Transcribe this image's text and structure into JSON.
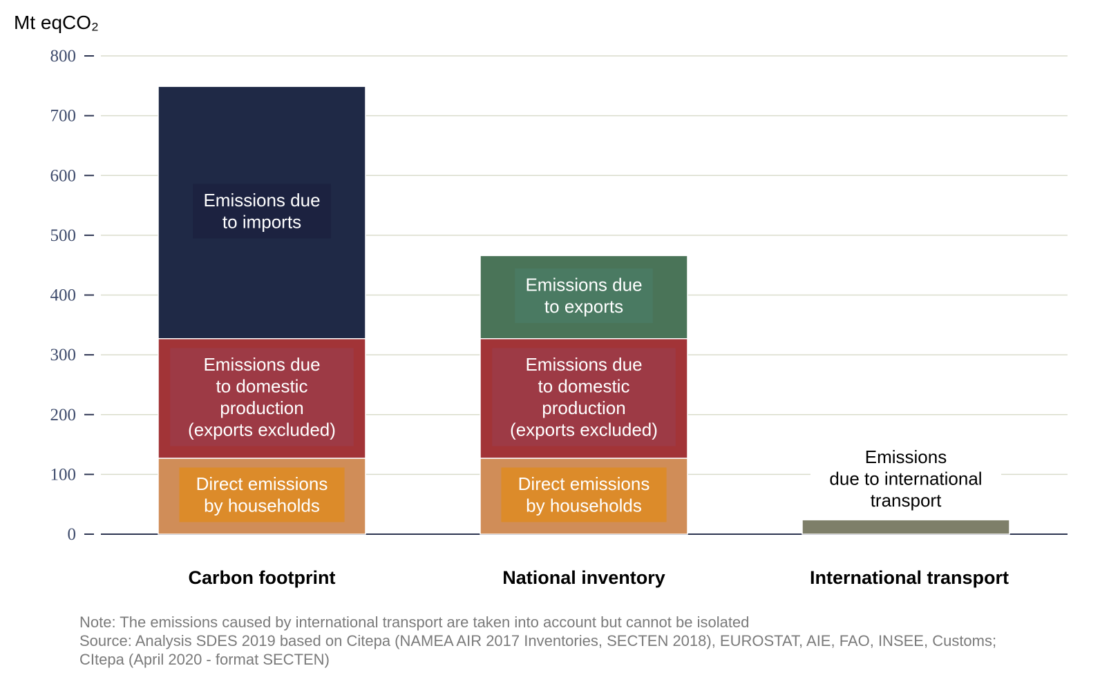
{
  "chart_data": {
    "type": "bar",
    "stacked": true,
    "ylabel": "Mt eqCO₂",
    "ylim": [
      0,
      800
    ],
    "yticks": [
      0,
      100,
      200,
      300,
      400,
      500,
      600,
      700,
      800
    ],
    "grid": true,
    "categories": [
      "Carbon footprint",
      "National inventory",
      "International transport"
    ],
    "series": [
      {
        "name": "Direct emissions by households",
        "color": "#d08d58",
        "label_box_color": "#dc8b2a",
        "values": [
          127,
          127,
          0
        ]
      },
      {
        "name": "Emissions due to domestic production (exports excluded)",
        "color": "#a23437",
        "label_box_color": "#9d3a45",
        "values": [
          200,
          200,
          0
        ]
      },
      {
        "name": "Emissions due to imports",
        "color": "#1f2946",
        "label_box_color": "#1c2240",
        "values": [
          422,
          0,
          0
        ]
      },
      {
        "name": "Emissions due to exports",
        "color": "#4a7458",
        "label_box_color": "#4a7a62",
        "values": [
          0,
          139,
          0
        ]
      },
      {
        "name": "Emissions due to international transport",
        "color": "#7e7f69",
        "label_box_color": "",
        "values": [
          0,
          0,
          24
        ]
      }
    ],
    "segment_labels": [
      {
        "category": 0,
        "series": 0,
        "lines": [
          "Direct emissions",
          "by households"
        ]
      },
      {
        "category": 0,
        "series": 1,
        "lines": [
          "Emissions due",
          "to domestic",
          "production",
          "(exports excluded)"
        ]
      },
      {
        "category": 0,
        "series": 2,
        "lines": [
          "Emissions due",
          "to imports"
        ]
      },
      {
        "category": 1,
        "series": 0,
        "lines": [
          "Direct emissions",
          "by households"
        ]
      },
      {
        "category": 1,
        "series": 1,
        "lines": [
          "Emissions due",
          "to domestic",
          "production",
          "(exports excluded)"
        ]
      },
      {
        "category": 1,
        "series": 3,
        "lines": [
          "Emissions due",
          "to exports"
        ]
      }
    ],
    "annotation": {
      "category": 2,
      "lines": [
        "Emissions",
        "due to international",
        "transport"
      ]
    },
    "colors": {
      "grid": "#d9dccb",
      "axis": "#2b3350",
      "tick_text": "#3d4a6b",
      "note_text": "#7a7a7a"
    }
  },
  "notes": {
    "note": "Note: The emissions caused by international transport are taken into account but cannot be isolated",
    "source_line1": "Source: Analysis SDES 2019 based on Citepa (NAMEA AIR 2017 Inventories, SECTEN 2018), EUROSTAT, AIE, FAO, INSEE, Customs;",
    "source_line2": "CItepa (April 2020 - format SECTEN)"
  }
}
